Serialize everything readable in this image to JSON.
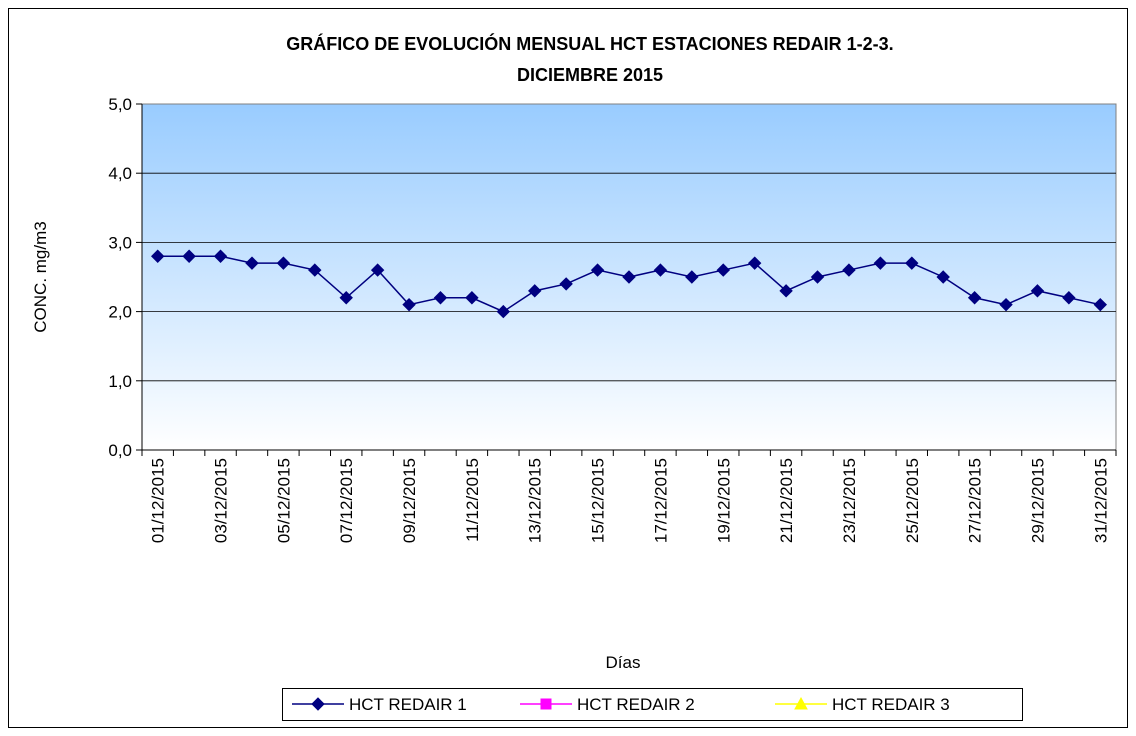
{
  "chart_data": {
    "type": "line",
    "title": [
      "GRÁFICO DE EVOLUCIÓN MENSUAL HCT ESTACIONES REDAIR 1-2-3.",
      "DICIEMBRE 2015"
    ],
    "x_label": "Días",
    "y_label": "CONC. mg/m3",
    "categories": [
      "01/12/2015",
      null,
      "03/12/2015",
      null,
      "05/12/2015",
      null,
      "07/12/2015",
      null,
      "09/12/2015",
      null,
      "11/12/2015",
      null,
      "13/12/2015",
      null,
      "15/12/2015",
      null,
      "17/12/2015",
      null,
      "19/12/2015",
      null,
      "21/12/2015",
      null,
      "23/12/2015",
      null,
      "25/12/2015",
      null,
      "27/12/2015",
      null,
      "29/12/2015",
      null,
      "31/12/2015"
    ],
    "series": [
      {
        "name": "HCT REDAIR 1",
        "color": "#000080",
        "marker": "diamond",
        "values": [
          2.8,
          2.8,
          2.8,
          2.7,
          2.7,
          2.6,
          2.2,
          2.6,
          2.1,
          2.2,
          2.2,
          2.0,
          2.3,
          2.4,
          2.6,
          2.5,
          2.6,
          2.5,
          2.6,
          2.7,
          2.3,
          2.5,
          2.6,
          2.7,
          2.7,
          2.5,
          2.2,
          2.1,
          2.3,
          2.2,
          2.1
        ]
      },
      {
        "name": "HCT REDAIR 2",
        "color": "#ff00ff",
        "marker": "square",
        "values": [
          null,
          null,
          null,
          null,
          null,
          null,
          null,
          null,
          null,
          null,
          null,
          null,
          null,
          null,
          null,
          null,
          null,
          null,
          null,
          null,
          null,
          null,
          null,
          null,
          null,
          null,
          null,
          null,
          null,
          null,
          null
        ]
      },
      {
        "name": "HCT REDAIR 3",
        "color": "#ffff00",
        "marker": "triangle",
        "values": [
          null,
          null,
          null,
          null,
          null,
          null,
          null,
          null,
          null,
          null,
          null,
          null,
          null,
          null,
          null,
          null,
          null,
          null,
          null,
          null,
          null,
          null,
          null,
          null,
          null,
          null,
          null,
          null,
          null,
          null,
          null
        ]
      }
    ],
    "ylim": [
      0,
      5
    ],
    "yticks": [
      {
        "value": 0,
        "label": "0,0"
      },
      {
        "value": 1,
        "label": "1,0"
      },
      {
        "value": 2,
        "label": "2,0"
      },
      {
        "value": 3,
        "label": "3,0"
      },
      {
        "value": 4,
        "label": "4,0"
      },
      {
        "value": 5,
        "label": "5,0"
      }
    ],
    "grid": true,
    "legend": "bottom"
  }
}
